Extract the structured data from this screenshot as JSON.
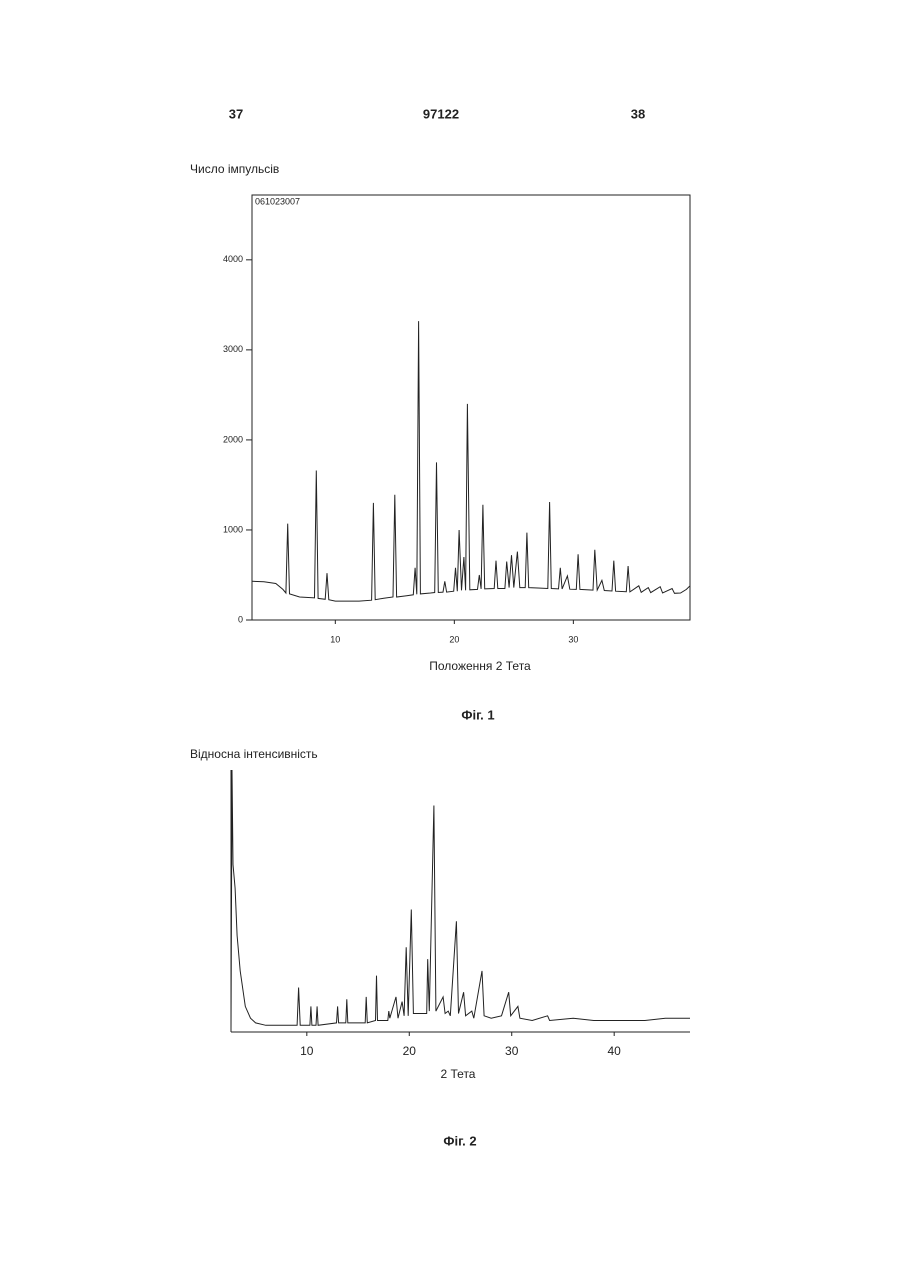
{
  "header": {
    "left": "37",
    "center": "97122",
    "right": "38"
  },
  "chart_data": [
    {
      "type": "line",
      "y_label": "Число імпульсів",
      "x_label": "Положення 2 Тета",
      "caption": "Фіг. 1",
      "annotation": "061023007",
      "frame": true,
      "color": "#222222",
      "xlim": [
        3,
        39.8
      ],
      "ylim": [
        0,
        4720
      ],
      "xticks": [
        10,
        20,
        30
      ],
      "yticks": [
        0,
        1000,
        2000,
        3000,
        4000
      ],
      "x": [
        3,
        4,
        5,
        5.6,
        5.85,
        6.0,
        6.15,
        7,
        8.25,
        8.4,
        8.55,
        9.15,
        9.3,
        9.45,
        10,
        12,
        13.05,
        13.2,
        13.35,
        14,
        14.85,
        15.0,
        15.15,
        16,
        16.55,
        16.7,
        16.85,
        17.0,
        17.15,
        18,
        18.35,
        18.5,
        18.65,
        19.05,
        19.2,
        19.35,
        19.95,
        20.1,
        20.25,
        20.4,
        20.6,
        20.8,
        20.95,
        21.1,
        21.3,
        21.95,
        22.1,
        22.25,
        22.4,
        22.55,
        23.35,
        23.5,
        23.65,
        24.25,
        24.4,
        24.6,
        24.8,
        25.0,
        25.3,
        25.5,
        25.95,
        26.1,
        26.25,
        27,
        27.85,
        28.0,
        28.15,
        28.75,
        28.9,
        29.05,
        29.5,
        29.7,
        30.25,
        30.4,
        30.55,
        31.65,
        31.8,
        32.0,
        32.4,
        32.6,
        33.25,
        33.4,
        33.55,
        34.45,
        34.6,
        34.75,
        35.5,
        35.7,
        36.3,
        36.5,
        37.3,
        37.5,
        38.3,
        38.5,
        39,
        39.5,
        39.8
      ],
      "values": [
        430,
        425,
        405,
        340,
        300,
        1070,
        290,
        255,
        245,
        1660,
        240,
        230,
        520,
        225,
        210,
        210,
        220,
        1300,
        225,
        240,
        255,
        1390,
        255,
        270,
        280,
        580,
        285,
        3320,
        290,
        300,
        305,
        1750,
        305,
        310,
        430,
        310,
        320,
        580,
        320,
        1000,
        330,
        700,
        330,
        2400,
        335,
        340,
        500,
        345,
        1280,
        345,
        350,
        660,
        350,
        350,
        650,
        360,
        720,
        360,
        760,
        360,
        360,
        970,
        360,
        355,
        350,
        1310,
        350,
        345,
        580,
        345,
        490,
        342,
        340,
        730,
        340,
        332,
        780,
        332,
        440,
        328,
        322,
        660,
        320,
        314,
        600,
        312,
        380,
        308,
        360,
        304,
        370,
        300,
        350,
        296,
        300,
        340,
        380
      ]
    },
    {
      "type": "line",
      "y_label": "Відносна інтенсивність",
      "x_label": "2 Тета",
      "caption": "Фіг. 2",
      "frame": false,
      "color": "#222222",
      "xlim": [
        2.6,
        47.4
      ],
      "ylim": [
        0,
        110
      ],
      "xticks": [
        10,
        20,
        30,
        40
      ],
      "x": [
        2.6,
        2.7,
        2.8,
        3.0,
        3.2,
        3.5,
        4,
        4.5,
        5,
        6,
        8,
        9.05,
        9.2,
        9.35,
        10.3,
        10.4,
        10.5,
        10.9,
        11.0,
        11.1,
        12.9,
        13.0,
        13.1,
        13.8,
        13.9,
        14,
        15.7,
        15.8,
        15.9,
        16.7,
        16.8,
        16.9,
        17.9,
        18.0,
        18.1,
        18.7,
        18.9,
        19.3,
        19.5,
        19.7,
        19.9,
        20.2,
        20.4,
        21.7,
        21.8,
        21.95,
        22.4,
        22.6,
        23.3,
        23.5,
        23.8,
        24.0,
        24.6,
        24.8,
        25.3,
        25.5,
        26.1,
        26.3,
        27.1,
        27.3,
        28,
        29,
        29.7,
        29.9,
        30.6,
        30.8,
        32,
        33.5,
        33.7,
        36,
        38,
        40,
        43,
        45,
        47.4
      ],
      "values": [
        0,
        110,
        70,
        60,
        40,
        25,
        10,
        5,
        3,
        2,
        2,
        2,
        18,
        2,
        2,
        10,
        2,
        2,
        10,
        2,
        3,
        10,
        3,
        3,
        13,
        3,
        3,
        14,
        3,
        4,
        23,
        4,
        4,
        8,
        5,
        14,
        5,
        12,
        6,
        35,
        6,
        51,
        7,
        7,
        30,
        8,
        95,
        8,
        14,
        7,
        8,
        6,
        46,
        7,
        16,
        6,
        8,
        5,
        25,
        6,
        5,
        6,
        16,
        6,
        10,
        5,
        4,
        6,
        4,
        5,
        4,
        4,
        4,
        5,
        5
      ]
    }
  ]
}
